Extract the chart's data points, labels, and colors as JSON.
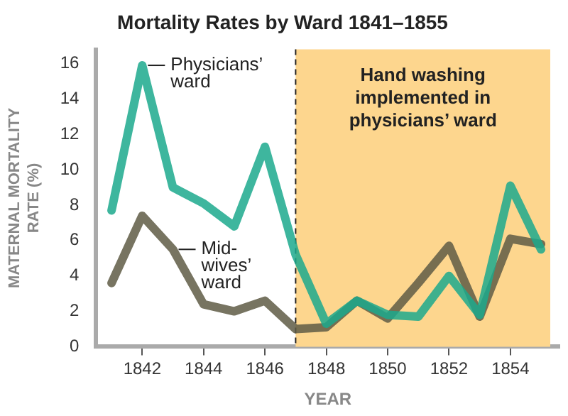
{
  "chart_data": {
    "type": "line",
    "title": "Mortality Rates by Ward 1841–1855",
    "xlabel": "YEAR",
    "ylabel": "MATERNAL MORTALITY RATE (%)",
    "x": [
      1841,
      1842,
      1843,
      1844,
      1845,
      1846,
      1847,
      1848,
      1849,
      1850,
      1851,
      1852,
      1853,
      1854,
      1855
    ],
    "series": [
      {
        "name": "Physicians’ ward",
        "color": "#1ba98c",
        "values": [
          7.7,
          15.9,
          9.0,
          8.1,
          6.8,
          11.3,
          5.2,
          1.3,
          2.6,
          1.8,
          1.7,
          4.0,
          1.8,
          9.1,
          5.5
        ]
      },
      {
        "name": "Mid-wives’ ward",
        "color": "#5f5b45",
        "values": [
          3.6,
          7.4,
          5.5,
          2.4,
          2.0,
          2.6,
          1.0,
          1.1,
          2.6,
          1.6,
          3.6,
          5.7,
          1.7,
          6.1,
          5.8
        ]
      }
    ],
    "xlim": [
      1840.5,
      1855.6
    ],
    "xticks": [
      1842,
      1844,
      1846,
      1848,
      1850,
      1852,
      1854
    ],
    "ylim": [
      0,
      16.8
    ],
    "yticks": [
      0,
      2,
      4,
      6,
      8,
      10,
      12,
      14,
      16
    ],
    "bands": [
      {
        "axis": "x",
        "from": 1847,
        "to": 1855.3,
        "label": "Hand washing implemented in physicians’ ward",
        "color": "#fdd68e"
      }
    ],
    "ref_lines": [
      {
        "axis": "x",
        "value": 1847,
        "line_style": "dashed",
        "color": "#222222"
      }
    ],
    "grid": false,
    "legend": false,
    "marker": "none",
    "line_style": "solid"
  }
}
